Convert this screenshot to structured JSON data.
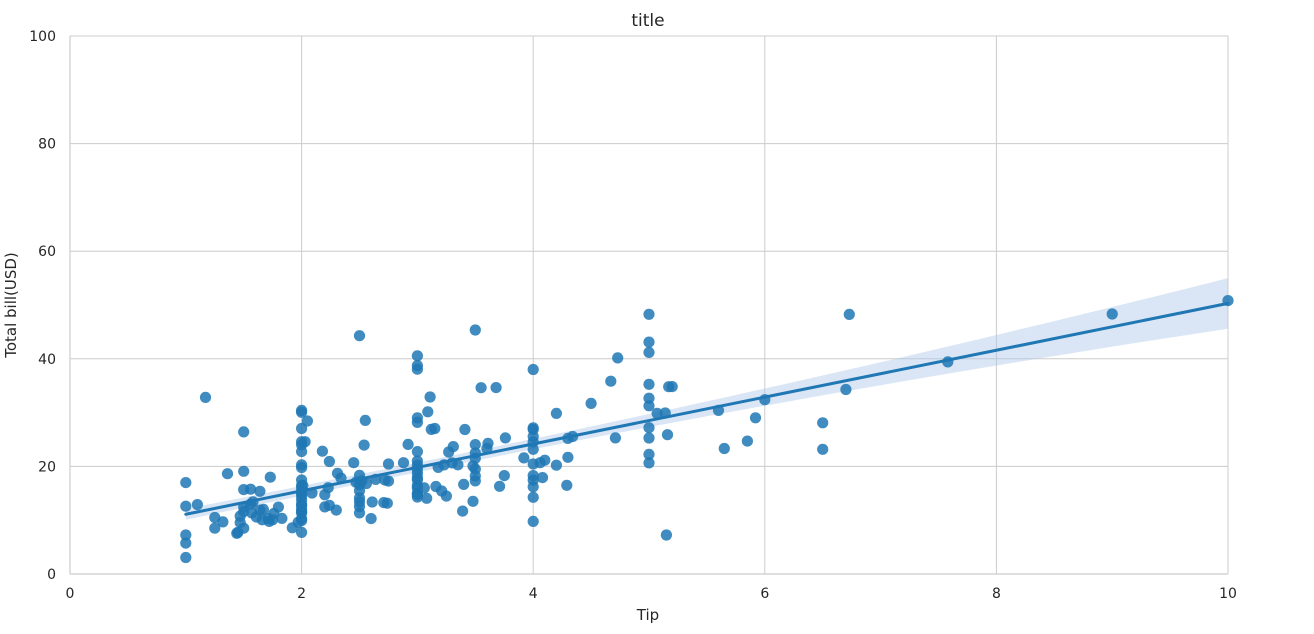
{
  "chart_data": {
    "type": "scatter",
    "title": "title",
    "xlabel": "Tip",
    "ylabel": "Total bill(USD)",
    "xlim": [
      0,
      10
    ],
    "ylim": [
      0,
      100
    ],
    "xticks": [
      0,
      2,
      4,
      6,
      8,
      10
    ],
    "yticks": [
      0,
      20,
      40,
      60,
      80,
      100
    ],
    "grid": true,
    "colors": {
      "points": "#1f77b4",
      "line": "#1f77b4",
      "band": "#aec7e8",
      "grid": "#cccccc",
      "text": "#262626"
    },
    "regression": {
      "x": [
        1.0,
        10.0
      ],
      "y": [
        11.1,
        50.3
      ],
      "ci_half_width_low": 1.0,
      "ci_half_width_high": 4.7
    },
    "points": [
      [
        1.0,
        3.07
      ],
      [
        1.0,
        5.75
      ],
      [
        1.0,
        7.25
      ],
      [
        1.0,
        12.6
      ],
      [
        1.0,
        16.99
      ],
      [
        1.1,
        12.9
      ],
      [
        1.17,
        32.83
      ],
      [
        1.25,
        8.51
      ],
      [
        1.25,
        10.51
      ],
      [
        1.32,
        9.68
      ],
      [
        1.36,
        18.64
      ],
      [
        1.44,
        7.56
      ],
      [
        1.45,
        7.74
      ],
      [
        1.47,
        9.55
      ],
      [
        1.47,
        10.77
      ],
      [
        1.5,
        8.52
      ],
      [
        1.5,
        11.59
      ],
      [
        1.5,
        12.46
      ],
      [
        1.5,
        15.69
      ],
      [
        1.5,
        19.08
      ],
      [
        1.5,
        26.41
      ],
      [
        1.56,
        13.0
      ],
      [
        1.56,
        15.77
      ],
      [
        1.57,
        11.36
      ],
      [
        1.58,
        13.42
      ],
      [
        1.61,
        10.59
      ],
      [
        1.64,
        11.87
      ],
      [
        1.64,
        15.38
      ],
      [
        1.66,
        10.07
      ],
      [
        1.67,
        12.0
      ],
      [
        1.71,
        10.33
      ],
      [
        1.72,
        9.78
      ],
      [
        1.73,
        18.0
      ],
      [
        1.75,
        10.07
      ],
      [
        1.76,
        11.24
      ],
      [
        1.8,
        12.43
      ],
      [
        1.83,
        10.34
      ],
      [
        1.92,
        8.58
      ],
      [
        1.97,
        9.6
      ],
      [
        2.0,
        7.74
      ],
      [
        2.0,
        9.94
      ],
      [
        2.0,
        10.27
      ],
      [
        2.0,
        11.35
      ],
      [
        2.0,
        11.61
      ],
      [
        2.0,
        12.03
      ],
      [
        2.0,
        12.66
      ],
      [
        2.0,
        13.0
      ],
      [
        2.0,
        13.81
      ],
      [
        2.0,
        14.52
      ],
      [
        2.0,
        15.04
      ],
      [
        2.0,
        15.36
      ],
      [
        2.0,
        16.0
      ],
      [
        2.0,
        16.47
      ],
      [
        2.0,
        17.47
      ],
      [
        2.0,
        19.77
      ],
      [
        2.0,
        20.29
      ],
      [
        2.0,
        22.76
      ],
      [
        2.0,
        24.01
      ],
      [
        2.0,
        24.59
      ],
      [
        2.0,
        27.05
      ],
      [
        2.0,
        30.06
      ],
      [
        2.0,
        30.4
      ],
      [
        2.01,
        16.45
      ],
      [
        2.03,
        24.59
      ],
      [
        2.05,
        28.44
      ],
      [
        2.09,
        15.06
      ],
      [
        2.18,
        22.82
      ],
      [
        2.2,
        14.73
      ],
      [
        2.2,
        12.48
      ],
      [
        2.23,
        16.04
      ],
      [
        2.24,
        12.77
      ],
      [
        2.24,
        20.92
      ],
      [
        2.3,
        11.87
      ],
      [
        2.31,
        18.71
      ],
      [
        2.34,
        17.82
      ],
      [
        2.45,
        20.69
      ],
      [
        2.47,
        17.07
      ],
      [
        2.5,
        11.35
      ],
      [
        2.5,
        12.54
      ],
      [
        2.5,
        13.42
      ],
      [
        2.5,
        14.15
      ],
      [
        2.5,
        15.48
      ],
      [
        2.5,
        16.58
      ],
      [
        2.5,
        18.35
      ],
      [
        2.5,
        44.3
      ],
      [
        2.52,
        17.29
      ],
      [
        2.54,
        23.95
      ],
      [
        2.55,
        28.55
      ],
      [
        2.56,
        16.82
      ],
      [
        2.6,
        10.29
      ],
      [
        2.61,
        13.39
      ],
      [
        2.64,
        17.59
      ],
      [
        2.71,
        13.28
      ],
      [
        2.72,
        17.46
      ],
      [
        2.74,
        13.16
      ],
      [
        2.75,
        17.26
      ],
      [
        2.75,
        20.45
      ],
      [
        2.88,
        20.69
      ],
      [
        2.92,
        24.08
      ],
      [
        3.0,
        14.31
      ],
      [
        3.0,
        14.78
      ],
      [
        3.0,
        15.01
      ],
      [
        3.0,
        15.98
      ],
      [
        3.0,
        16.43
      ],
      [
        3.0,
        17.51
      ],
      [
        3.0,
        17.89
      ],
      [
        3.0,
        18.69
      ],
      [
        3.0,
        19.44
      ],
      [
        3.0,
        20.23
      ],
      [
        3.0,
        21.01
      ],
      [
        3.0,
        22.75
      ],
      [
        3.0,
        28.17
      ],
      [
        3.0,
        29.03
      ],
      [
        3.0,
        38.07
      ],
      [
        3.0,
        38.73
      ],
      [
        3.0,
        40.55
      ],
      [
        3.06,
        16.0
      ],
      [
        3.08,
        14.07
      ],
      [
        3.09,
        30.14
      ],
      [
        3.11,
        32.9
      ],
      [
        3.12,
        26.88
      ],
      [
        3.15,
        27.05
      ],
      [
        3.16,
        16.27
      ],
      [
        3.18,
        19.81
      ],
      [
        3.21,
        15.42
      ],
      [
        3.23,
        20.27
      ],
      [
        3.25,
        14.48
      ],
      [
        3.27,
        22.67
      ],
      [
        3.3,
        20.65
      ],
      [
        3.31,
        23.68
      ],
      [
        3.35,
        20.29
      ],
      [
        3.39,
        11.69
      ],
      [
        3.4,
        16.66
      ],
      [
        3.41,
        26.86
      ],
      [
        3.48,
        13.51
      ],
      [
        3.48,
        20.08
      ],
      [
        3.5,
        17.31
      ],
      [
        3.5,
        18.24
      ],
      [
        3.5,
        19.49
      ],
      [
        3.5,
        21.5
      ],
      [
        3.5,
        22.49
      ],
      [
        3.5,
        24.06
      ],
      [
        3.5,
        45.35
      ],
      [
        3.55,
        34.63
      ],
      [
        3.6,
        23.33
      ],
      [
        3.61,
        24.27
      ],
      [
        3.68,
        34.65
      ],
      [
        3.71,
        16.31
      ],
      [
        3.75,
        18.29
      ],
      [
        3.76,
        25.29
      ],
      [
        3.92,
        21.58
      ],
      [
        4.0,
        9.78
      ],
      [
        4.0,
        14.26
      ],
      [
        4.0,
        16.21
      ],
      [
        4.0,
        17.46
      ],
      [
        4.0,
        18.29
      ],
      [
        4.0,
        20.45
      ],
      [
        4.0,
        23.17
      ],
      [
        4.0,
        24.55
      ],
      [
        4.0,
        25.56
      ],
      [
        4.0,
        26.88
      ],
      [
        4.0,
        27.18
      ],
      [
        4.0,
        38.01
      ],
      [
        4.06,
        20.69
      ],
      [
        4.08,
        17.92
      ],
      [
        4.1,
        21.16
      ],
      [
        4.2,
        20.23
      ],
      [
        4.2,
        29.85
      ],
      [
        4.29,
        16.49
      ],
      [
        4.3,
        21.7
      ],
      [
        4.3,
        25.21
      ],
      [
        4.34,
        25.56
      ],
      [
        4.5,
        31.71
      ],
      [
        4.67,
        35.83
      ],
      [
        4.71,
        25.29
      ],
      [
        4.73,
        40.17
      ],
      [
        5.0,
        20.65
      ],
      [
        5.0,
        22.23
      ],
      [
        5.0,
        25.28
      ],
      [
        5.0,
        27.2
      ],
      [
        5.0,
        31.27
      ],
      [
        5.0,
        32.68
      ],
      [
        5.0,
        35.26
      ],
      [
        5.0,
        41.19
      ],
      [
        5.0,
        43.11
      ],
      [
        5.0,
        48.27
      ],
      [
        5.07,
        29.85
      ],
      [
        5.14,
        29.93
      ],
      [
        5.15,
        7.25
      ],
      [
        5.16,
        25.89
      ],
      [
        5.17,
        34.81
      ],
      [
        5.2,
        34.83
      ],
      [
        5.6,
        30.4
      ],
      [
        5.65,
        23.33
      ],
      [
        5.85,
        24.71
      ],
      [
        5.92,
        29.03
      ],
      [
        6.0,
        32.4
      ],
      [
        6.5,
        23.17
      ],
      [
        6.5,
        28.11
      ],
      [
        6.7,
        34.3
      ],
      [
        6.73,
        48.26
      ],
      [
        7.58,
        39.42
      ],
      [
        9.0,
        48.33
      ],
      [
        10.0,
        50.81
      ]
    ]
  }
}
